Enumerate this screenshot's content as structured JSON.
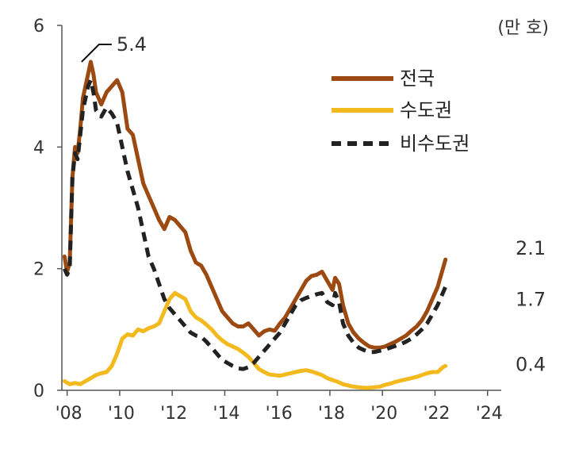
{
  "chart_data": {
    "type": "line",
    "unit_label": "(만 호)",
    "ylim": [
      0,
      6
    ],
    "yticks": [
      0,
      2,
      4,
      6
    ],
    "xlim": [
      2007.8,
      2024.4
    ],
    "xticks": [
      {
        "x": 2008,
        "label": "'08"
      },
      {
        "x": 2010,
        "label": "'10"
      },
      {
        "x": 2012,
        "label": "'12"
      },
      {
        "x": 2014,
        "label": "'14"
      },
      {
        "x": 2016,
        "label": "'16"
      },
      {
        "x": 2018,
        "label": "'18"
      },
      {
        "x": 2020,
        "label": "'20"
      },
      {
        "x": 2022,
        "label": "'22"
      },
      {
        "x": 2024,
        "label": "'24"
      }
    ],
    "peak_annotation": {
      "x": 2008.55,
      "y": 5.4,
      "label": "5.4"
    },
    "series": [
      {
        "name": "전국",
        "color": "#9C4A12",
        "style": "solid",
        "end_label": "2.1",
        "points": [
          [
            2007.9,
            2.2
          ],
          [
            2008.0,
            1.95
          ],
          [
            2008.1,
            2.1
          ],
          [
            2008.2,
            3.5
          ],
          [
            2008.3,
            4.0
          ],
          [
            2008.4,
            3.9
          ],
          [
            2008.5,
            4.3
          ],
          [
            2008.6,
            4.8
          ],
          [
            2008.8,
            5.2
          ],
          [
            2008.9,
            5.4
          ],
          [
            2009.0,
            5.2
          ],
          [
            2009.1,
            4.9
          ],
          [
            2009.3,
            4.7
          ],
          [
            2009.5,
            4.9
          ],
          [
            2009.7,
            5.0
          ],
          [
            2009.9,
            5.1
          ],
          [
            2010.1,
            4.9
          ],
          [
            2010.3,
            4.3
          ],
          [
            2010.5,
            4.2
          ],
          [
            2010.7,
            3.8
          ],
          [
            2010.9,
            3.4
          ],
          [
            2011.1,
            3.2
          ],
          [
            2011.3,
            3.0
          ],
          [
            2011.5,
            2.8
          ],
          [
            2011.7,
            2.65
          ],
          [
            2011.9,
            2.85
          ],
          [
            2012.1,
            2.8
          ],
          [
            2012.3,
            2.7
          ],
          [
            2012.5,
            2.6
          ],
          [
            2012.7,
            2.3
          ],
          [
            2012.9,
            2.1
          ],
          [
            2013.1,
            2.05
          ],
          [
            2013.3,
            1.9
          ],
          [
            2013.5,
            1.7
          ],
          [
            2013.7,
            1.5
          ],
          [
            2013.9,
            1.3
          ],
          [
            2014.1,
            1.2
          ],
          [
            2014.3,
            1.1
          ],
          [
            2014.5,
            1.05
          ],
          [
            2014.7,
            1.05
          ],
          [
            2014.9,
            1.1
          ],
          [
            2015.1,
            1.0
          ],
          [
            2015.3,
            0.9
          ],
          [
            2015.5,
            0.97
          ],
          [
            2015.7,
            1.0
          ],
          [
            2015.9,
            0.98
          ],
          [
            2016.1,
            1.1
          ],
          [
            2016.3,
            1.2
          ],
          [
            2016.5,
            1.35
          ],
          [
            2016.7,
            1.5
          ],
          [
            2016.9,
            1.65
          ],
          [
            2017.1,
            1.8
          ],
          [
            2017.3,
            1.88
          ],
          [
            2017.5,
            1.9
          ],
          [
            2017.7,
            1.95
          ],
          [
            2017.9,
            1.8
          ],
          [
            2018.1,
            1.65
          ],
          [
            2018.2,
            1.85
          ],
          [
            2018.35,
            1.75
          ],
          [
            2018.5,
            1.4
          ],
          [
            2018.7,
            1.1
          ],
          [
            2018.9,
            0.95
          ],
          [
            2019.1,
            0.85
          ],
          [
            2019.3,
            0.78
          ],
          [
            2019.5,
            0.72
          ],
          [
            2019.7,
            0.7
          ],
          [
            2019.9,
            0.7
          ],
          [
            2020.1,
            0.72
          ],
          [
            2020.3,
            0.76
          ],
          [
            2020.5,
            0.8
          ],
          [
            2020.7,
            0.85
          ],
          [
            2020.9,
            0.9
          ],
          [
            2021.1,
            0.98
          ],
          [
            2021.3,
            1.05
          ],
          [
            2021.5,
            1.15
          ],
          [
            2021.7,
            1.3
          ],
          [
            2021.9,
            1.5
          ],
          [
            2022.1,
            1.7
          ],
          [
            2022.3,
            2.0
          ],
          [
            2022.4,
            2.15
          ]
        ]
      },
      {
        "name": "수도권",
        "color": "#F2BA1E",
        "style": "solid",
        "end_label": "0.4",
        "points": [
          [
            2007.9,
            0.15
          ],
          [
            2008.1,
            0.1
          ],
          [
            2008.3,
            0.12
          ],
          [
            2008.5,
            0.1
          ],
          [
            2008.7,
            0.15
          ],
          [
            2008.9,
            0.2
          ],
          [
            2009.1,
            0.25
          ],
          [
            2009.3,
            0.28
          ],
          [
            2009.5,
            0.3
          ],
          [
            2009.7,
            0.4
          ],
          [
            2009.9,
            0.6
          ],
          [
            2010.1,
            0.85
          ],
          [
            2010.3,
            0.92
          ],
          [
            2010.5,
            0.9
          ],
          [
            2010.7,
            1.0
          ],
          [
            2010.9,
            0.97
          ],
          [
            2011.1,
            1.02
          ],
          [
            2011.3,
            1.05
          ],
          [
            2011.5,
            1.1
          ],
          [
            2011.7,
            1.3
          ],
          [
            2011.9,
            1.5
          ],
          [
            2012.1,
            1.6
          ],
          [
            2012.3,
            1.55
          ],
          [
            2012.5,
            1.5
          ],
          [
            2012.7,
            1.3
          ],
          [
            2012.9,
            1.2
          ],
          [
            2013.1,
            1.15
          ],
          [
            2013.3,
            1.08
          ],
          [
            2013.5,
            1.0
          ],
          [
            2013.7,
            0.9
          ],
          [
            2013.9,
            0.82
          ],
          [
            2014.1,
            0.76
          ],
          [
            2014.3,
            0.72
          ],
          [
            2014.5,
            0.68
          ],
          [
            2014.7,
            0.62
          ],
          [
            2014.9,
            0.55
          ],
          [
            2015.1,
            0.45
          ],
          [
            2015.3,
            0.35
          ],
          [
            2015.5,
            0.3
          ],
          [
            2015.7,
            0.26
          ],
          [
            2015.9,
            0.25
          ],
          [
            2016.1,
            0.24
          ],
          [
            2016.3,
            0.26
          ],
          [
            2016.5,
            0.28
          ],
          [
            2016.7,
            0.3
          ],
          [
            2016.9,
            0.32
          ],
          [
            2017.1,
            0.33
          ],
          [
            2017.3,
            0.31
          ],
          [
            2017.5,
            0.28
          ],
          [
            2017.7,
            0.25
          ],
          [
            2017.9,
            0.2
          ],
          [
            2018.1,
            0.17
          ],
          [
            2018.3,
            0.14
          ],
          [
            2018.5,
            0.1
          ],
          [
            2018.7,
            0.08
          ],
          [
            2018.9,
            0.06
          ],
          [
            2019.1,
            0.05
          ],
          [
            2019.3,
            0.04
          ],
          [
            2019.5,
            0.04
          ],
          [
            2019.7,
            0.05
          ],
          [
            2019.9,
            0.06
          ],
          [
            2020.1,
            0.09
          ],
          [
            2020.3,
            0.11
          ],
          [
            2020.5,
            0.14
          ],
          [
            2020.7,
            0.16
          ],
          [
            2020.9,
            0.18
          ],
          [
            2021.1,
            0.2
          ],
          [
            2021.3,
            0.22
          ],
          [
            2021.5,
            0.25
          ],
          [
            2021.7,
            0.28
          ],
          [
            2021.9,
            0.3
          ],
          [
            2022.1,
            0.3
          ],
          [
            2022.3,
            0.38
          ],
          [
            2022.4,
            0.4
          ]
        ]
      },
      {
        "name": "비수도권",
        "color": "#222222",
        "style": "dashed",
        "end_label": "1.7",
        "points": [
          [
            2007.9,
            2.0
          ],
          [
            2008.0,
            1.9
          ],
          [
            2008.1,
            2.0
          ],
          [
            2008.2,
            3.5
          ],
          [
            2008.3,
            3.9
          ],
          [
            2008.4,
            3.8
          ],
          [
            2008.5,
            4.2
          ],
          [
            2008.6,
            4.6
          ],
          [
            2008.8,
            5.0
          ],
          [
            2008.9,
            5.1
          ],
          [
            2009.0,
            4.9
          ],
          [
            2009.1,
            4.6
          ],
          [
            2009.3,
            4.5
          ],
          [
            2009.5,
            4.65
          ],
          [
            2009.7,
            4.55
          ],
          [
            2009.9,
            4.4
          ],
          [
            2010.1,
            4.0
          ],
          [
            2010.3,
            3.6
          ],
          [
            2010.5,
            3.3
          ],
          [
            2010.7,
            3.0
          ],
          [
            2010.9,
            2.6
          ],
          [
            2011.1,
            2.2
          ],
          [
            2011.3,
            2.0
          ],
          [
            2011.5,
            1.75
          ],
          [
            2011.7,
            1.5
          ],
          [
            2011.9,
            1.35
          ],
          [
            2012.1,
            1.25
          ],
          [
            2012.3,
            1.15
          ],
          [
            2012.5,
            1.05
          ],
          [
            2012.7,
            0.95
          ],
          [
            2012.9,
            0.9
          ],
          [
            2013.1,
            0.88
          ],
          [
            2013.3,
            0.8
          ],
          [
            2013.5,
            0.7
          ],
          [
            2013.7,
            0.6
          ],
          [
            2013.9,
            0.5
          ],
          [
            2014.1,
            0.45
          ],
          [
            2014.3,
            0.4
          ],
          [
            2014.5,
            0.36
          ],
          [
            2014.7,
            0.35
          ],
          [
            2014.9,
            0.38
          ],
          [
            2015.1,
            0.45
          ],
          [
            2015.3,
            0.55
          ],
          [
            2015.5,
            0.65
          ],
          [
            2015.7,
            0.75
          ],
          [
            2015.9,
            0.85
          ],
          [
            2016.1,
            0.95
          ],
          [
            2016.3,
            1.1
          ],
          [
            2016.5,
            1.25
          ],
          [
            2016.7,
            1.4
          ],
          [
            2016.9,
            1.48
          ],
          [
            2017.1,
            1.52
          ],
          [
            2017.3,
            1.55
          ],
          [
            2017.5,
            1.58
          ],
          [
            2017.7,
            1.6
          ],
          [
            2017.9,
            1.45
          ],
          [
            2018.1,
            1.4
          ],
          [
            2018.2,
            1.6
          ],
          [
            2018.35,
            1.45
          ],
          [
            2018.5,
            1.1
          ],
          [
            2018.7,
            0.9
          ],
          [
            2018.9,
            0.78
          ],
          [
            2019.1,
            0.7
          ],
          [
            2019.3,
            0.66
          ],
          [
            2019.5,
            0.63
          ],
          [
            2019.7,
            0.63
          ],
          [
            2019.9,
            0.65
          ],
          [
            2020.1,
            0.67
          ],
          [
            2020.3,
            0.7
          ],
          [
            2020.5,
            0.73
          ],
          [
            2020.7,
            0.76
          ],
          [
            2020.9,
            0.8
          ],
          [
            2021.1,
            0.85
          ],
          [
            2021.3,
            0.92
          ],
          [
            2021.5,
            1.0
          ],
          [
            2021.7,
            1.1
          ],
          [
            2021.9,
            1.25
          ],
          [
            2022.1,
            1.4
          ],
          [
            2022.3,
            1.6
          ],
          [
            2022.4,
            1.7
          ]
        ]
      }
    ]
  }
}
